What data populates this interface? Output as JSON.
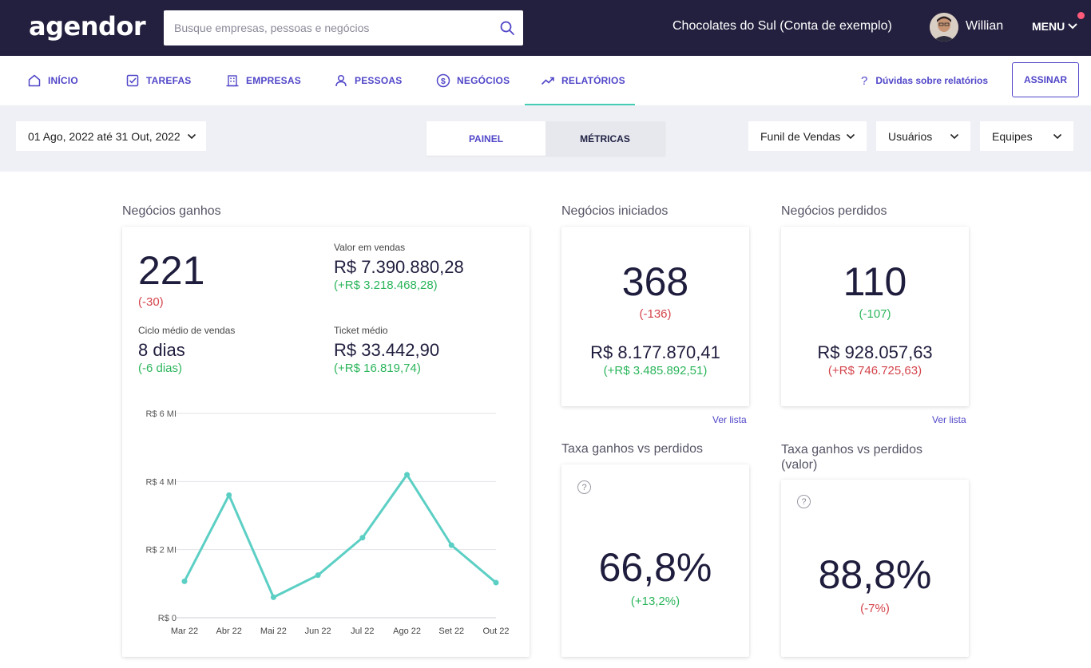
{
  "header": {
    "logo": "agendor",
    "search_placeholder": "Busque empresas, pessoas e negócios",
    "account": "Chocolates do Sul (Conta de exemplo)",
    "user": "Willian",
    "menu": "MENU"
  },
  "nav": {
    "items": [
      {
        "label": "INÍCIO",
        "icon": "home-icon"
      },
      {
        "label": "TAREFAS",
        "icon": "checkbox-icon"
      },
      {
        "label": "EMPRESAS",
        "icon": "building-icon"
      },
      {
        "label": "PESSOAS",
        "icon": "person-icon"
      },
      {
        "label": "NEGÓCIOS",
        "icon": "dollar-icon"
      },
      {
        "label": "RELATÓRIOS",
        "icon": "trend-icon"
      }
    ],
    "active": "RELATÓRIOS",
    "help": "Dúvidas sobre relatórios",
    "subscribe": "ASSINAR"
  },
  "filters": {
    "date_range": "01 Ago, 2022 até 31 Out, 2022",
    "tabs": [
      "PAINEL",
      "MÉTRICAS"
    ],
    "active_tab": "PAINEL",
    "funnel": "Funil de Vendas",
    "users": "Usuários",
    "teams": "Equipes"
  },
  "won": {
    "title": "Negócios ganhos",
    "count": "221",
    "count_delta": "(-30)",
    "sales_label": "Valor em vendas",
    "sales_value": "R$ 7.390.880,28",
    "sales_delta": "(+R$ 3.218.468,28)",
    "cycle_label": "Ciclo médio de vendas",
    "cycle_value": "8 dias",
    "cycle_delta": "(-6 dias)",
    "ticket_label": "Ticket médio",
    "ticket_value": "R$ 33.442,90",
    "ticket_delta": "(+R$ 16.819,74)"
  },
  "started": {
    "title": "Negócios iniciados",
    "count": "368",
    "count_delta": "(-136)",
    "value": "R$ 8.177.870,41",
    "value_delta": "(+R$ 3.485.892,51)",
    "link": "Ver lista"
  },
  "lost": {
    "title": "Negócios perdidos",
    "count": "110",
    "count_delta": "(-107)",
    "value": "R$ 928.057,63",
    "value_delta": "(+R$ 746.725,63)",
    "link": "Ver lista"
  },
  "rate": {
    "title": "Taxa ganhos vs perdidos",
    "value": "66,8%",
    "delta": "(+13,2%)"
  },
  "rate_value": {
    "title_line1": "Taxa ganhos vs perdidos",
    "title_line2": "(valor)",
    "value": "88,8%",
    "delta": "(-7%)"
  },
  "colors": {
    "header_bg": "#23203f",
    "accent": "#5046c8",
    "active_underline": "#44ccb4",
    "line": "#5ccfc4",
    "positive": "#2cb55c",
    "negative": "#d4454c"
  },
  "chart_data": {
    "type": "line",
    "categories": [
      "Mar 22",
      "Abr 22",
      "Mai 22",
      "Jun 22",
      "Jul 22",
      "Ago 22",
      "Set 22",
      "Out 22"
    ],
    "values": [
      1.07,
      3.6,
      0.6,
      1.25,
      2.35,
      4.2,
      2.13,
      1.03
    ],
    "y_ticks": [
      {
        "value": 0,
        "label": "R$ 0"
      },
      {
        "value": 2,
        "label": "R$ 2 MI"
      },
      {
        "value": 4,
        "label": "R$ 4 MI"
      },
      {
        "value": 6,
        "label": "R$ 6 MI"
      }
    ],
    "ylim": [
      0,
      6
    ],
    "grid": true
  }
}
